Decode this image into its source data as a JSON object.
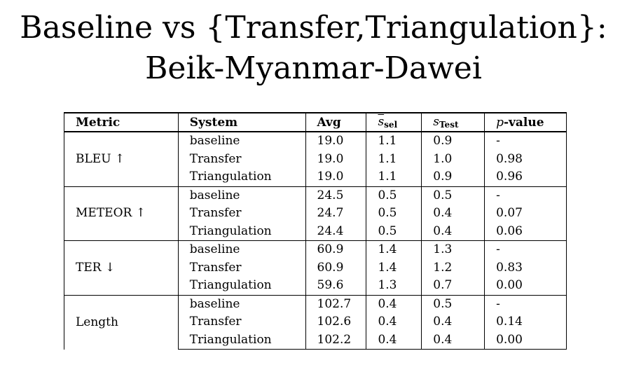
{
  "title": {
    "line1": "Baseline vs {Transfer,Triangulation}:",
    "line2": "Beik-Myanmar-Dawei"
  },
  "table": {
    "headers": {
      "metric": "Metric",
      "system": "System",
      "avg": "Avg",
      "s_sel_symbol": "s",
      "s_sel_sub": "sel",
      "s_test_symbol": "s",
      "s_test_sub": "Test",
      "pvalue_p": "p",
      "pvalue_rest": "-value"
    },
    "groups": [
      {
        "metric": "BLEU ↑",
        "rows": [
          {
            "system": "baseline",
            "avg": "19.0",
            "s_sel": "1.1",
            "s_test": "0.9",
            "p": "-"
          },
          {
            "system": "Transfer",
            "avg": "19.0",
            "s_sel": "1.1",
            "s_test": "1.0",
            "p": "0.98"
          },
          {
            "system": "Triangulation",
            "avg": "19.0",
            "s_sel": "1.1",
            "s_test": "0.9",
            "p": "0.96"
          }
        ]
      },
      {
        "metric": "METEOR ↑",
        "rows": [
          {
            "system": "baseline",
            "avg": "24.5",
            "s_sel": "0.5",
            "s_test": "0.5",
            "p": "-"
          },
          {
            "system": "Transfer",
            "avg": "24.7",
            "s_sel": "0.5",
            "s_test": "0.4",
            "p": "0.07"
          },
          {
            "system": "Triangulation",
            "avg": "24.4",
            "s_sel": "0.5",
            "s_test": "0.4",
            "p": "0.06"
          }
        ]
      },
      {
        "metric": "TER ↓",
        "rows": [
          {
            "system": "baseline",
            "avg": "60.9",
            "s_sel": "1.4",
            "s_test": "1.3",
            "p": "-"
          },
          {
            "system": "Transfer",
            "avg": "60.9",
            "s_sel": "1.4",
            "s_test": "1.2",
            "p": "0.83"
          },
          {
            "system": "Triangulation",
            "avg": "59.6",
            "s_sel": "1.3",
            "s_test": "0.7",
            "p": "0.00"
          }
        ]
      },
      {
        "metric": "Length",
        "rows": [
          {
            "system": "baseline",
            "avg": "102.7",
            "s_sel": "0.4",
            "s_test": "0.5",
            "p": "-"
          },
          {
            "system": "Transfer",
            "avg": "102.6",
            "s_sel": "0.4",
            "s_test": "0.4",
            "p": "0.14"
          },
          {
            "system": "Triangulation",
            "avg": "102.2",
            "s_sel": "0.4",
            "s_test": "0.4",
            "p": "0.00"
          }
        ]
      }
    ]
  }
}
